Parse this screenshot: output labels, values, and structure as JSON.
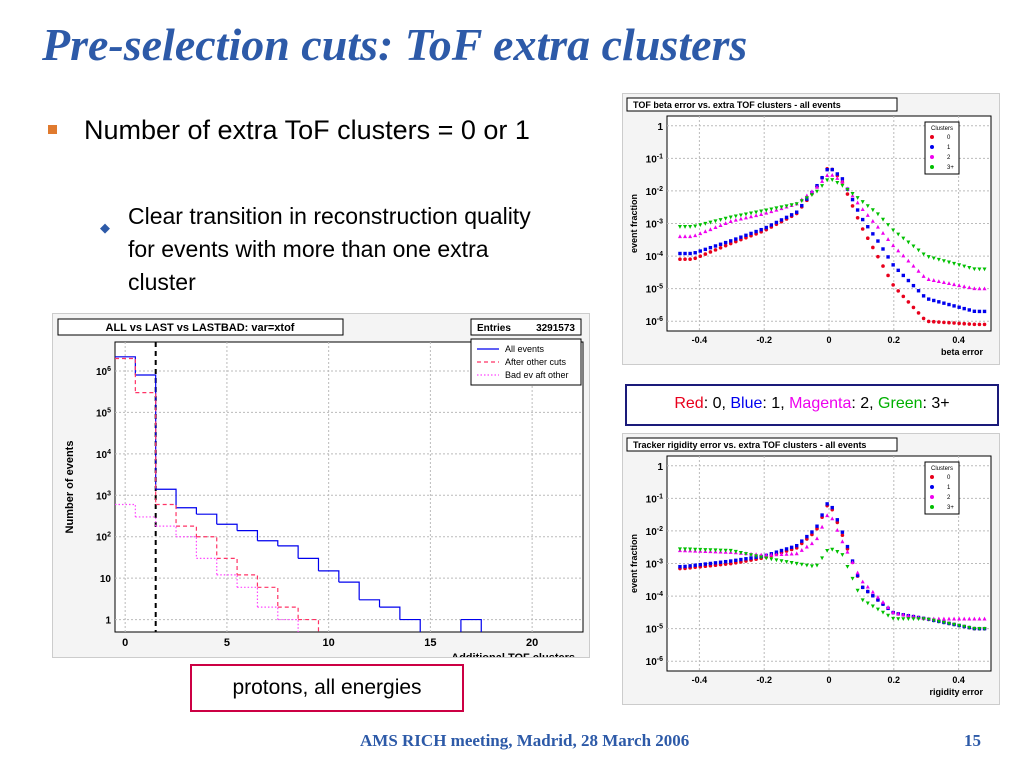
{
  "slide": {
    "title": "Pre-selection cuts: ToF extra clusters",
    "bullet1": "Number of extra ToF clusters = 0 or 1",
    "bullet2": "Clear transition in reconstruction quality for events with more than one extra cluster",
    "legend": {
      "red": "Red",
      "red_val": ": 0, ",
      "blue": "Blue",
      "blue_val": ": 1, ",
      "magenta": "Magenta",
      "magenta_val": ": 2, ",
      "green": "Green",
      "green_val": ": 3+"
    },
    "proton_note": "protons, all energies",
    "footer": "AMS RICH meeting, Madrid, 28 March 2006",
    "page": "15"
  },
  "colors": {
    "title": "#2d5aa8",
    "red": "#e8001c",
    "blue": "#0000ee",
    "magenta": "#ee00ee",
    "green": "#00c000"
  },
  "chart_data": [
    {
      "type": "line",
      "title": "ALL vs LAST vs LASTBAD: var=xtof",
      "stats": {
        "label": "Entries",
        "value": "3291573"
      },
      "xlabel": "Additional TOF clusters",
      "ylabel": "Number of events",
      "log_y": true,
      "xlim": [
        -0.5,
        22.5
      ],
      "x_ticks": [
        "0",
        "5",
        "10",
        "15",
        "20"
      ],
      "y_ticks": [
        "1",
        "10",
        "10^2",
        "10^3",
        "10^4",
        "10^5",
        "10^6"
      ],
      "series": [
        {
          "name": "All events",
          "color": "#0000ee",
          "style": "solid",
          "x": [
            0,
            1,
            2,
            3,
            4,
            5,
            6,
            7,
            8,
            9,
            10,
            11,
            12,
            13,
            14,
            15,
            16,
            17,
            18,
            19
          ],
          "y": [
            2200000,
            800000,
            1400,
            500,
            350,
            200,
            140,
            80,
            60,
            30,
            15,
            8,
            3,
            2,
            1,
            0,
            0,
            1,
            0,
            0
          ]
        },
        {
          "name": "After other cuts",
          "color": "#ff3366",
          "style": "dashed",
          "x": [
            0,
            1,
            2,
            3,
            4,
            5,
            6,
            7,
            8,
            9,
            10,
            11,
            12
          ],
          "y": [
            2000000,
            300000,
            600,
            180,
            100,
            30,
            12,
            6,
            2,
            1,
            0,
            0,
            0
          ]
        },
        {
          "name": "Bad ev aft other",
          "color": "#ff44ff",
          "style": "dotted",
          "x": [
            0,
            1,
            2,
            3,
            4,
            5,
            6,
            7,
            8,
            9,
            10,
            11,
            12
          ],
          "y": [
            600,
            300,
            180,
            100,
            30,
            12,
            6,
            2,
            1,
            0,
            0,
            0,
            0
          ]
        }
      ]
    },
    {
      "type": "scatter",
      "title": "TOF beta error vs. extra TOF clusters - all events",
      "xlabel": "beta error",
      "ylabel": "event fraction",
      "log_y": true,
      "xlim": [
        -0.5,
        0.5
      ],
      "x_ticks": [
        "-0.4",
        "-0.2",
        "0",
        "0.2",
        "0.4"
      ],
      "y_ticks": [
        "10^-6",
        "10^-5",
        "10^-4",
        "10^-3",
        "10^-2",
        "10^-1",
        "1"
      ],
      "legend_title": "Clusters",
      "legend_entries": [
        "0",
        "1",
        "2",
        "3+"
      ],
      "series": [
        {
          "name": "0",
          "x": [
            -0.42,
            -0.3,
            -0.2,
            -0.1,
            -0.04,
            0,
            0.04,
            0.1,
            0.15,
            0.2,
            0.3,
            0.45
          ],
          "y": [
            8e-05,
            0.00025,
            0.0006,
            0.002,
            0.012,
            0.06,
            0.02,
            0.0008,
            0.0001,
            1.2e-05,
            1e-06,
            8e-07
          ]
        },
        {
          "name": "1",
          "x": [
            -0.42,
            -0.3,
            -0.2,
            -0.1,
            -0.04,
            0,
            0.04,
            0.1,
            0.15,
            0.2,
            0.3,
            0.45
          ],
          "y": [
            0.00012,
            0.0003,
            0.0007,
            0.0022,
            0.013,
            0.055,
            0.025,
            0.0015,
            0.0003,
            5e-05,
            5e-06,
            2e-06
          ]
        },
        {
          "name": "2",
          "x": [
            -0.42,
            -0.3,
            -0.2,
            -0.1,
            -0.04,
            0,
            0.04,
            0.1,
            0.15,
            0.2,
            0.3,
            0.45
          ],
          "y": [
            0.0004,
            0.0012,
            0.002,
            0.004,
            0.012,
            0.035,
            0.02,
            0.003,
            0.0008,
            0.0002,
            2e-05,
            1e-05
          ]
        },
        {
          "name": "3+",
          "x": [
            -0.42,
            -0.3,
            -0.2,
            -0.1,
            -0.04,
            0,
            0.04,
            0.1,
            0.15,
            0.2,
            0.3,
            0.45
          ],
          "y": [
            0.0008,
            0.0016,
            0.0025,
            0.004,
            0.009,
            0.025,
            0.015,
            0.005,
            0.002,
            0.0006,
            0.0001,
            4e-05
          ]
        }
      ]
    },
    {
      "type": "scatter",
      "title": "Tracker rigidity error vs. extra TOF clusters - all events",
      "xlabel": "rigidity error",
      "ylabel": "event fraction",
      "log_y": true,
      "xlim": [
        -0.5,
        0.5
      ],
      "x_ticks": [
        "-0.4",
        "-0.2",
        "0",
        "0.2",
        "0.4"
      ],
      "y_ticks": [
        "10^-6",
        "10^-5",
        "10^-4",
        "10^-3",
        "10^-2",
        "10^-1",
        "1"
      ],
      "legend_title": "Clusters",
      "legend_entries": [
        "0",
        "1",
        "2",
        "3+"
      ],
      "series": [
        {
          "name": "0",
          "x": [
            -0.45,
            -0.3,
            -0.2,
            -0.1,
            -0.04,
            0,
            0.04,
            0.1,
            0.2,
            0.3,
            0.45
          ],
          "y": [
            0.0007,
            0.001,
            0.0015,
            0.003,
            0.01,
            0.08,
            0.008,
            0.0002,
            3e-05,
            2e-05,
            1e-05
          ]
        },
        {
          "name": "1",
          "x": [
            -0.45,
            -0.3,
            -0.2,
            -0.1,
            -0.04,
            0,
            0.04,
            0.1,
            0.2,
            0.3,
            0.45
          ],
          "y": [
            0.0008,
            0.0012,
            0.0017,
            0.0035,
            0.012,
            0.09,
            0.01,
            0.0002,
            3e-05,
            2e-05,
            1e-05
          ]
        },
        {
          "name": "2",
          "x": [
            -0.45,
            -0.3,
            -0.2,
            -0.1,
            -0.04,
            0,
            0.04,
            0.1,
            0.2,
            0.3,
            0.45
          ],
          "y": [
            0.0025,
            0.0022,
            0.0018,
            0.002,
            0.005,
            0.04,
            0.005,
            0.0003,
            3e-05,
            2e-05,
            2e-05
          ]
        },
        {
          "name": "3+",
          "x": [
            -0.45,
            -0.3,
            -0.2,
            -0.1,
            -0.04,
            0,
            0.04,
            0.1,
            0.2,
            0.3,
            0.45
          ],
          "y": [
            0.0028,
            0.0025,
            0.0015,
            0.001,
            0.0008,
            0.003,
            0.002,
            8e-05,
            2e-05,
            2e-05,
            1e-05
          ]
        }
      ]
    }
  ]
}
